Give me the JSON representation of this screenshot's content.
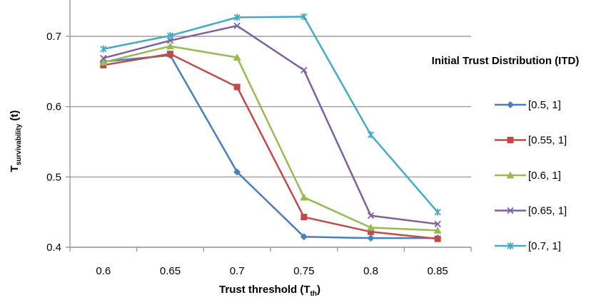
{
  "chart_data": {
    "type": "line",
    "x": [
      0.6,
      0.65,
      0.7,
      0.75,
      0.8,
      0.85
    ],
    "x_tick_labels": [
      "0.6",
      "0.65",
      "0.7",
      "0.75",
      "0.8",
      "0.85"
    ],
    "xlabel": "Trust threshold (T",
    "xlabel_sub": "th",
    "xlabel_end": ")",
    "ylabel": "T",
    "ylabel_sub": "survivability",
    "ylabel_end": " (t)",
    "ylim": [
      0.4,
      0.75
    ],
    "y_ticks": [
      0.4,
      0.5,
      0.6,
      0.7
    ],
    "y_tick_labels": [
      "0.4",
      "0.5",
      "0.6",
      "0.7"
    ],
    "grid": "horizontal",
    "legend": {
      "title": "Initial Trust Distribution (ITD)",
      "position": "right"
    },
    "series": [
      {
        "name": "[0.5, 1]",
        "color": "#4A7EBB",
        "marker": "diamond",
        "values": [
          0.664,
          0.673,
          0.507,
          0.415,
          0.413,
          0.413
        ]
      },
      {
        "name": "[0.55, 1]",
        "color": "#BE4B48",
        "marker": "square",
        "values": [
          0.659,
          0.675,
          0.628,
          0.443,
          0.422,
          0.412
        ]
      },
      {
        "name": "[0.6, 1]",
        "color": "#98B954",
        "marker": "triangle",
        "values": [
          0.663,
          0.686,
          0.67,
          0.471,
          0.428,
          0.424
        ]
      },
      {
        "name": "[0.65, 1]",
        "color": "#7D60A0",
        "marker": "x",
        "values": [
          0.669,
          0.694,
          0.715,
          0.652,
          0.445,
          0.433
        ]
      },
      {
        "name": "[0.7, 1]",
        "color": "#46AAC5",
        "marker": "star",
        "values": [
          0.682,
          0.701,
          0.727,
          0.728,
          0.56,
          0.45
        ]
      }
    ]
  }
}
